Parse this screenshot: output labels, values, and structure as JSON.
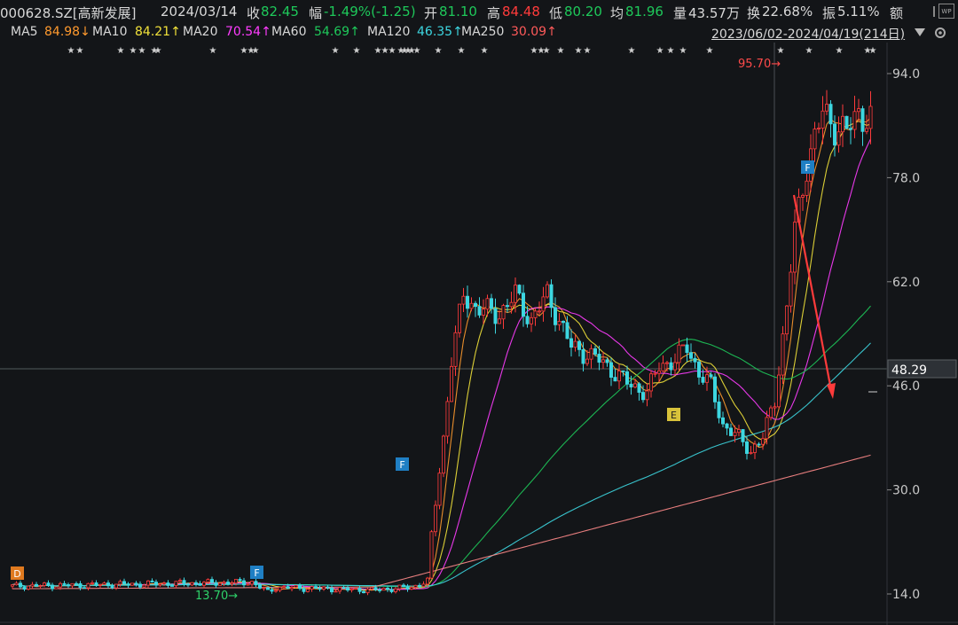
{
  "header": {
    "code": "000628.SZ[高新发展]",
    "date": "2024/03/14",
    "close_label": "收",
    "close": "82.45",
    "change_label": "幅",
    "change": "-1.49%(-1.25)",
    "open_label": "开",
    "open": "81.10",
    "high_label": "高",
    "high": "84.48",
    "low_label": "低",
    "low": "80.20",
    "avg_label": "均",
    "avg": "81.96",
    "volume_label": "量",
    "volume": "43.57万",
    "turnover_label": "换",
    "turnover": "22.68%",
    "amplitude_label": "振",
    "amplitude": "5.11%",
    "amount_label": "额"
  },
  "ma_bar": {
    "ma5_label": "MA5",
    "ma5": "84.98↓",
    "ma10_label": "MA10",
    "ma10": "84.21↑",
    "ma20_label": "MA20",
    "ma20": "70.54↑",
    "ma60_label": "MA60",
    "ma60": "54.69↑",
    "ma120_label": "MA120",
    "ma120": "46.35↑",
    "ma250_label": "MA250",
    "ma250": "30.09↑",
    "range": "2023/06/02-2024/04/19(214日)"
  },
  "chart_data": {
    "type": "line",
    "x_range": [
      "2023/06/02",
      "2024/04/19"
    ],
    "trading_days": 214,
    "yticks": [
      94.0,
      78.0,
      62.0,
      46.0,
      30.0,
      14.0
    ],
    "ylim": [
      11,
      100
    ],
    "crosshair_price": "48.29",
    "max_label": "95.70",
    "min_label": "13.70",
    "markers": [
      "D",
      "F",
      "F",
      "E",
      "F"
    ],
    "series": [
      {
        "name": "MA5",
        "color": "#ff9a2e"
      },
      {
        "name": "MA10",
        "color": "#f2e23a"
      },
      {
        "name": "MA20",
        "color": "#ff3cff"
      },
      {
        "name": "MA60",
        "color": "#1ec85a"
      },
      {
        "name": "MA120",
        "color": "#3dd6e0"
      },
      {
        "name": "MA250",
        "color": "#ff8a8a"
      }
    ]
  },
  "colors": {
    "up": "#ff3b3b",
    "down": "#3dd6e0",
    "background": "#131518",
    "arrow": "#ff3b3b"
  }
}
